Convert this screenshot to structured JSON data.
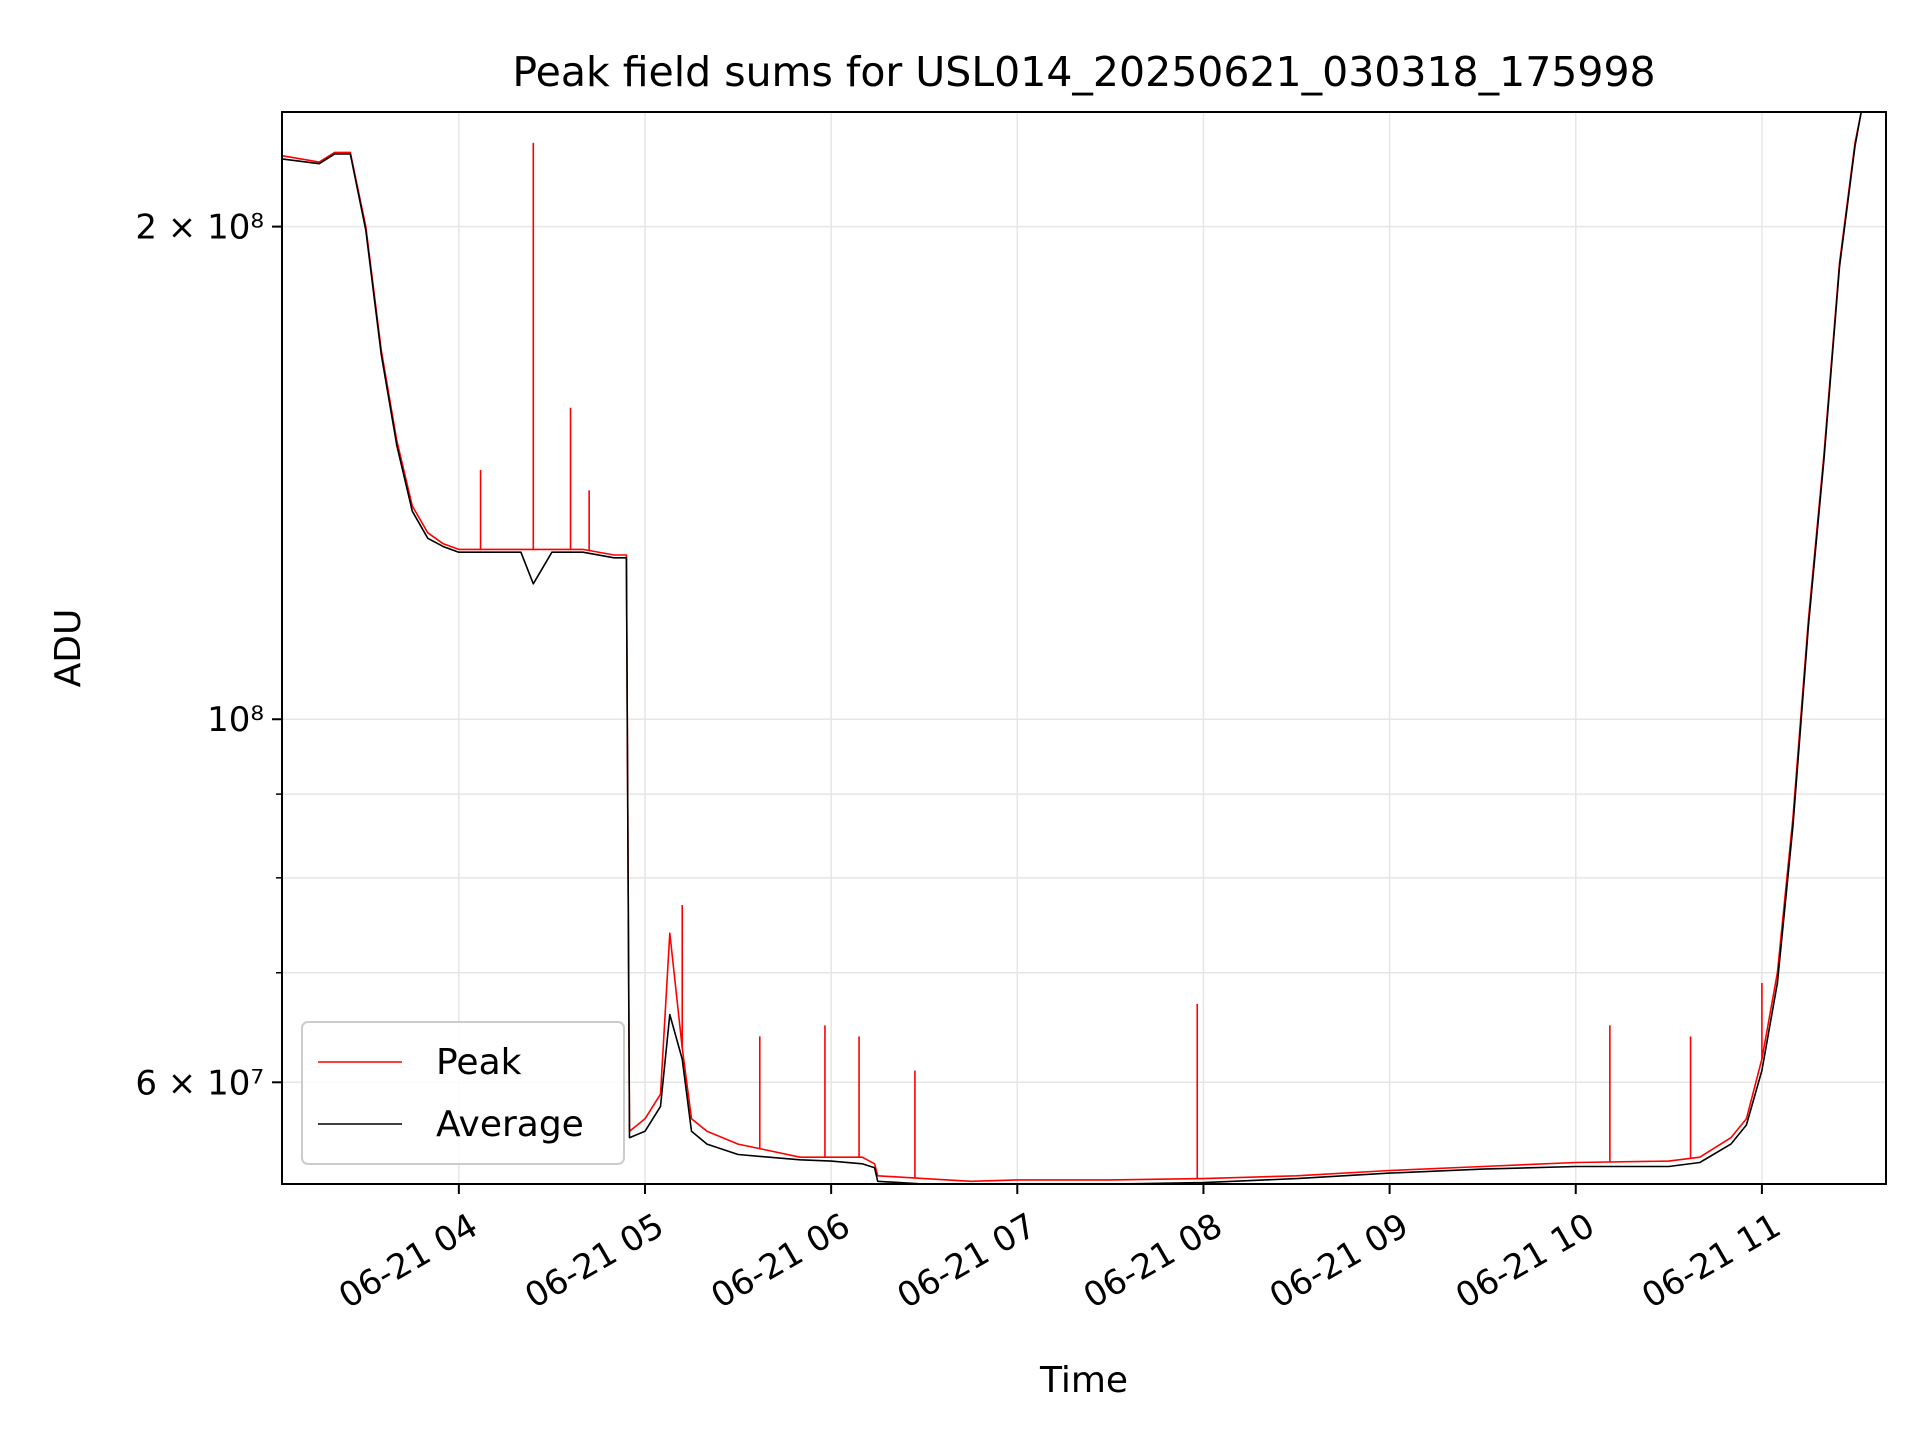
{
  "chart_data": {
    "type": "line",
    "title": "Peak field sums for USL014_20250621_030318_175998",
    "xlabel": "Time",
    "ylabel": "ADU",
    "x_range": [
      "06-21 03:03",
      "06-21 11:40"
    ],
    "y_scale": "log",
    "ylim": [
      52000000,
      235000000
    ],
    "grid": true,
    "legend_position": "bottom-left",
    "x_ticks": [
      "06-21 04",
      "06-21 05",
      "06-21 06",
      "06-21 07",
      "06-21 08",
      "06-21 09",
      "06-21 10",
      "06-21 11"
    ],
    "y_tick_labels": [
      "2 × 10⁸",
      "10⁸",
      "6 × 10⁷"
    ],
    "y_tick_values": [
      200000000,
      100000000,
      60000000
    ],
    "series": [
      {
        "name": "Peak",
        "color": "#ff0000",
        "x": [
          "03:03",
          "03:15",
          "03:20",
          "03:25",
          "03:30",
          "03:35",
          "03:40",
          "03:45",
          "03:50",
          "03:55",
          "04:00",
          "04:10",
          "04:20",
          "04:24",
          "04:30",
          "04:40",
          "04:50",
          "04:54",
          "04:55",
          "05:00",
          "05:05",
          "05:08",
          "05:12",
          "05:15",
          "05:20",
          "05:30",
          "05:40",
          "05:50",
          "06:00",
          "06:10",
          "06:14",
          "06:15",
          "06:30",
          "06:45",
          "07:00",
          "07:30",
          "08:00",
          "08:30",
          "09:00",
          "09:30",
          "10:00",
          "10:30",
          "10:40",
          "10:50",
          "10:55",
          "11:00",
          "11:05",
          "11:10",
          "11:15",
          "11:20",
          "11:25",
          "11:30",
          "11:32",
          "11:40"
        ],
        "y": [
          221000000,
          219000000,
          222000000,
          222000000,
          200000000,
          168000000,
          148000000,
          135000000,
          130000000,
          128000000,
          127000000,
          127000000,
          127000000,
          127000000,
          127000000,
          127000000,
          126000000,
          126000000,
          56000000,
          57000000,
          59000000,
          74000000,
          63000000,
          57000000,
          56000000,
          55000000,
          54500000,
          54000000,
          54000000,
          54000000,
          53500000,
          52600000,
          52400000,
          52200000,
          52300000,
          52300000,
          52400000,
          52600000,
          53000000,
          53300000,
          53600000,
          53700000,
          54000000,
          55500000,
          57000000,
          62000000,
          70000000,
          87000000,
          115000000,
          145000000,
          190000000,
          225000000,
          235000000,
          235000000
        ],
        "spikes": [
          {
            "x": "04:24",
            "y": 225000000
          },
          {
            "x": "04:36",
            "y": 155000000
          },
          {
            "x": "04:42",
            "y": 138000000
          },
          {
            "x": "04:07",
            "y": 142000000
          },
          {
            "x": "05:12",
            "y": 77000000
          },
          {
            "x": "05:37",
            "y": 64000000
          },
          {
            "x": "05:58",
            "y": 65000000
          },
          {
            "x": "06:09",
            "y": 64000000
          },
          {
            "x": "06:27",
            "y": 61000000
          },
          {
            "x": "07:58",
            "y": 67000000
          },
          {
            "x": "10:11",
            "y": 65000000
          },
          {
            "x": "10:37",
            "y": 64000000
          },
          {
            "x": "11:00",
            "y": 69000000
          }
        ]
      },
      {
        "name": "Average",
        "color": "#000000",
        "x": [
          "03:03",
          "03:15",
          "03:20",
          "03:25",
          "03:30",
          "03:35",
          "03:40",
          "03:45",
          "03:50",
          "03:55",
          "04:00",
          "04:10",
          "04:20",
          "04:24",
          "04:30",
          "04:40",
          "04:50",
          "04:54",
          "04:55",
          "05:00",
          "05:05",
          "05:08",
          "05:12",
          "05:15",
          "05:20",
          "05:30",
          "05:40",
          "05:50",
          "06:00",
          "06:10",
          "06:14",
          "06:15",
          "06:30",
          "06:45",
          "07:00",
          "07:30",
          "08:00",
          "08:30",
          "09:00",
          "09:30",
          "10:00",
          "10:30",
          "10:40",
          "10:50",
          "10:55",
          "11:00",
          "11:05",
          "11:10",
          "11:15",
          "11:20",
          "11:25",
          "11:30",
          "11:32",
          "11:40"
        ],
        "y": [
          220000000,
          218500000,
          221500000,
          221500000,
          199000000,
          167000000,
          147000000,
          134000000,
          129000000,
          127500000,
          126500000,
          126500000,
          126500000,
          121000000,
          126500000,
          126500000,
          125500000,
          125500000,
          55500000,
          56000000,
          58000000,
          66000000,
          62000000,
          56000000,
          55000000,
          54200000,
          54000000,
          53800000,
          53700000,
          53500000,
          53200000,
          52200000,
          52000000,
          51800000,
          51900000,
          52000000,
          52100000,
          52400000,
          52800000,
          53100000,
          53300000,
          53300000,
          53600000,
          55000000,
          56500000,
          61000000,
          69000000,
          86000000,
          114000000,
          144000000,
          189000000,
          224000000,
          235000000,
          235000000
        ]
      }
    ]
  }
}
